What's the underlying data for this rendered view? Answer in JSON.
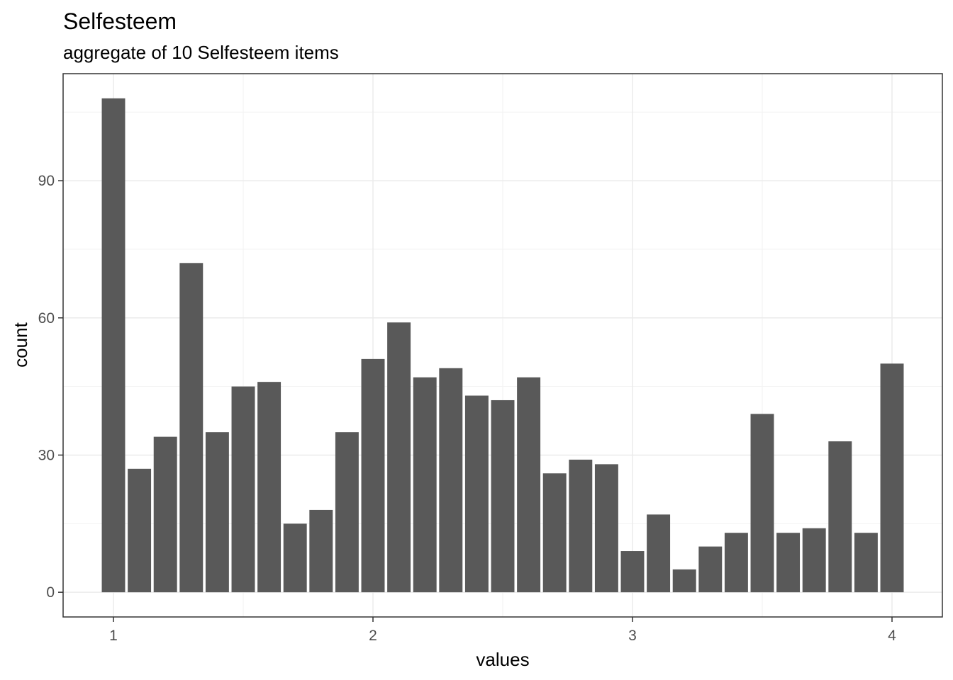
{
  "chart_data": {
    "type": "bar",
    "title": "Selfesteem",
    "subtitle": "aggregate of 10 Selfesteem items",
    "xlabel": "values",
    "ylabel": "count",
    "x_ticks": [
      "1",
      "2",
      "3",
      "4"
    ],
    "y_ticks": [
      "0",
      "30",
      "60",
      "90"
    ],
    "xlim": [
      0.806,
      4.194
    ],
    "ylim": [
      -5.4,
      113.4
    ],
    "bar_width": 0.09,
    "grid": true,
    "bar_color": "#595959",
    "x": [
      1.0,
      1.1,
      1.2,
      1.3,
      1.4,
      1.5,
      1.6,
      1.7,
      1.8,
      1.9,
      2.0,
      2.1,
      2.2,
      2.3,
      2.4,
      2.5,
      2.6,
      2.7,
      2.8,
      2.9,
      3.0,
      3.1,
      3.2,
      3.3,
      3.4,
      3.5,
      3.6,
      3.7,
      3.8,
      3.9,
      4.0
    ],
    "values": [
      108,
      27,
      34,
      72,
      35,
      45,
      46,
      15,
      18,
      35,
      51,
      59,
      47,
      49,
      43,
      42,
      47,
      26,
      29,
      28,
      9,
      17,
      5,
      10,
      13,
      39,
      13,
      14,
      33,
      13,
      50
    ]
  }
}
